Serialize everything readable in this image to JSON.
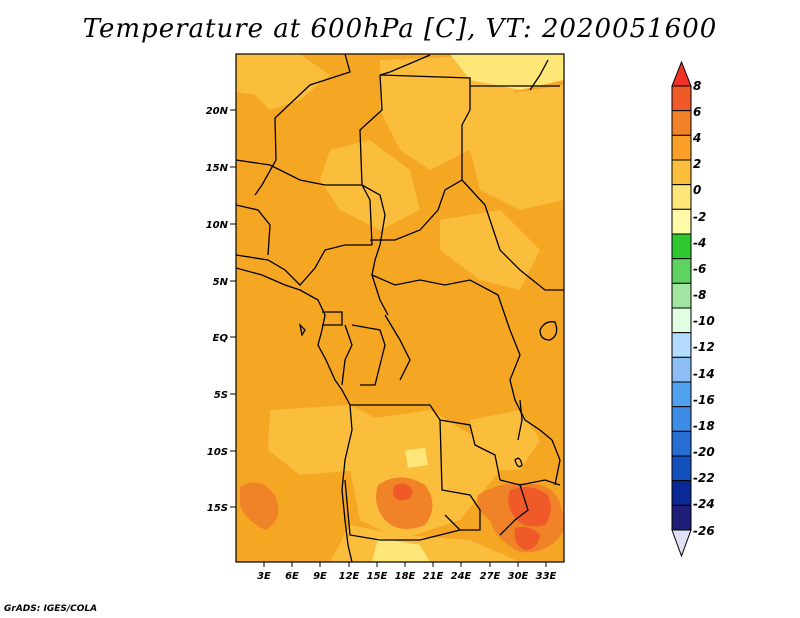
{
  "title": "Temperature at 600hPa [C], VT: 2020051600",
  "credit": "GrADS: IGES/COLA",
  "map": {
    "lat_ticks": [
      "20N",
      "15N",
      "10N",
      "5N",
      "EQ",
      "5S",
      "10S",
      "15S"
    ],
    "lon_ticks": [
      "3E",
      "6E",
      "9E",
      "12E",
      "15E",
      "18E",
      "21E",
      "24E",
      "27E",
      "30E",
      "33E"
    ]
  },
  "colorbar": {
    "labels": [
      "8",
      "6",
      "4",
      "2",
      "0",
      "-2",
      "-4",
      "-6",
      "-8",
      "-10",
      "-12",
      "-14",
      "-16",
      "-18",
      "-20",
      "-22",
      "-24",
      "-26"
    ],
    "colors": [
      "#f03228",
      "#f05a28",
      "#f08228",
      "#faa028",
      "#fabe3c",
      "#ffe678",
      "#fffaaa",
      "#30c830",
      "#5fd35f",
      "#a0e6a0",
      "#e1ffe1",
      "#b4dcff",
      "#8cbef5",
      "#50a0f0",
      "#3c8ce6",
      "#286ed2",
      "#1450be",
      "#0a2896",
      "#1e1e78",
      "#e1e1f5"
    ]
  }
}
